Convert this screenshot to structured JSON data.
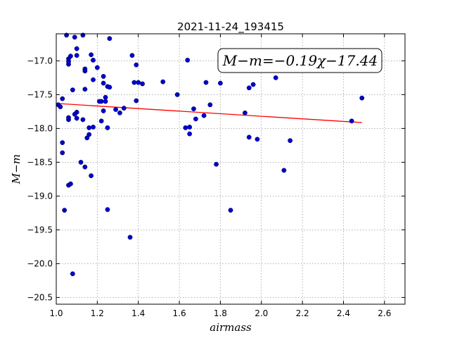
{
  "chart_data": {
    "type": "scatter",
    "title": "2021-11-24_193415",
    "xlabel": "airmass",
    "ylabel": "M−m",
    "xlim": [
      1.0,
      2.7
    ],
    "ylim": [
      -20.6,
      -16.6
    ],
    "y_inverted": true,
    "grid": true,
    "x_ticks": [
      "1.0",
      "1.2",
      "1.4",
      "1.6",
      "1.8",
      "2.0",
      "2.2",
      "2.4",
      "2.6"
    ],
    "x_tick_values": [
      1.0,
      1.2,
      1.4,
      1.6,
      1.8,
      2.0,
      2.2,
      2.4,
      2.6
    ],
    "y_ticks": [
      "−17.0",
      "−17.5",
      "−18.0",
      "−18.5",
      "−19.0",
      "−19.5",
      "−20.0",
      "−20.5"
    ],
    "y_tick_values": [
      -17.0,
      -17.5,
      -18.0,
      -18.5,
      -19.0,
      -19.5,
      -20.0,
      -20.5
    ],
    "annotation": "M−m=−0.19χ−17.44",
    "marker_color": "#0000cc",
    "fit_color": "#ff0000",
    "fit_line": {
      "slope": -0.19,
      "intercept": -17.44,
      "x_range": [
        1.0,
        2.49
      ]
    },
    "points": [
      [
        1.01,
        -17.65
      ],
      [
        1.02,
        -17.68
      ],
      [
        1.03,
        -17.56
      ],
      [
        1.03,
        -18.21
      ],
      [
        1.03,
        -18.36
      ],
      [
        1.04,
        -19.21
      ],
      [
        1.05,
        -16.62
      ],
      [
        1.06,
        -17.05
      ],
      [
        1.06,
        -17.01
      ],
      [
        1.06,
        -16.97
      ],
      [
        1.07,
        -16.93
      ],
      [
        1.06,
        -17.87
      ],
      [
        1.06,
        -17.84
      ],
      [
        1.06,
        -18.84
      ],
      [
        1.07,
        -18.82
      ],
      [
        1.08,
        -17.43
      ],
      [
        1.08,
        -20.15
      ],
      [
        1.09,
        -17.79
      ],
      [
        1.09,
        -16.65
      ],
      [
        1.1,
        -16.82
      ],
      [
        1.1,
        -16.92
      ],
      [
        1.1,
        -17.76
      ],
      [
        1.1,
        -17.85
      ],
      [
        1.12,
        -18.5
      ],
      [
        1.13,
        -16.62
      ],
      [
        1.13,
        -17.87
      ],
      [
        1.14,
        -17.15
      ],
      [
        1.14,
        -17.12
      ],
      [
        1.14,
        -17.42
      ],
      [
        1.14,
        -18.57
      ],
      [
        1.15,
        -18.14
      ],
      [
        1.16,
        -18.09
      ],
      [
        1.16,
        -17.99
      ],
      [
        1.17,
        -16.91
      ],
      [
        1.17,
        -18.7
      ],
      [
        1.18,
        -16.99
      ],
      [
        1.18,
        -17.28
      ],
      [
        1.18,
        -17.98
      ],
      [
        1.2,
        -17.1
      ],
      [
        1.21,
        -17.6
      ],
      [
        1.22,
        -17.6
      ],
      [
        1.22,
        -17.89
      ],
      [
        1.23,
        -17.74
      ],
      [
        1.23,
        -17.23
      ],
      [
        1.23,
        -17.33
      ],
      [
        1.24,
        -17.54
      ],
      [
        1.24,
        -17.6
      ],
      [
        1.25,
        -17.38
      ],
      [
        1.25,
        -17.99
      ],
      [
        1.25,
        -19.2
      ],
      [
        1.26,
        -16.67
      ],
      [
        1.26,
        -17.39
      ],
      [
        1.29,
        -17.72
      ],
      [
        1.31,
        -17.77
      ],
      [
        1.33,
        -17.7
      ],
      [
        1.36,
        -19.61
      ],
      [
        1.37,
        -16.92
      ],
      [
        1.38,
        -17.32
      ],
      [
        1.39,
        -17.06
      ],
      [
        1.39,
        -17.59
      ],
      [
        1.4,
        -17.32
      ],
      [
        1.42,
        -17.34
      ],
      [
        1.52,
        -17.31
      ],
      [
        1.59,
        -17.5
      ],
      [
        1.63,
        -17.99
      ],
      [
        1.64,
        -16.99
      ],
      [
        1.65,
        -17.98
      ],
      [
        1.65,
        -18.08
      ],
      [
        1.67,
        -17.71
      ],
      [
        1.68,
        -17.86
      ],
      [
        1.72,
        -17.81
      ],
      [
        1.73,
        -17.32
      ],
      [
        1.75,
        -17.65
      ],
      [
        1.78,
        -18.53
      ],
      [
        1.8,
        -17.33
      ],
      [
        1.85,
        -19.21
      ],
      [
        1.92,
        -17.77
      ],
      [
        1.94,
        -17.4
      ],
      [
        1.94,
        -18.13
      ],
      [
        1.96,
        -17.35
      ],
      [
        1.98,
        -18.16
      ],
      [
        2.07,
        -17.25
      ],
      [
        2.11,
        -18.62
      ],
      [
        2.14,
        -18.18
      ],
      [
        2.44,
        -17.89
      ],
      [
        2.49,
        -17.55
      ]
    ]
  }
}
